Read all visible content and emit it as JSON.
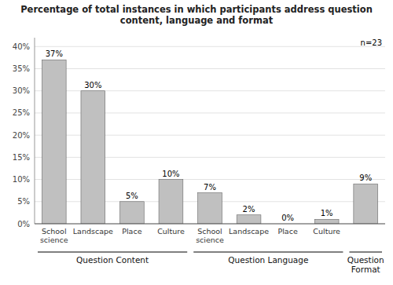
{
  "chart_data": {
    "type": "bar",
    "title": "Percentage of total instances in which participants address question\ncontent, language and format",
    "categories": [
      "School\nscience",
      "Landscape",
      "Place",
      "Culture",
      "School\nscience",
      "Landscape",
      "Place",
      "Culture",
      null
    ],
    "groups": [
      "Question Content",
      "Question Content",
      "Question Content",
      "Question Content",
      "Question Language",
      "Question Language",
      "Question Language",
      "Question Language",
      "Question\nFormat"
    ],
    "values": [
      37,
      30,
      5,
      10,
      7,
      2,
      0,
      1,
      9
    ],
    "value_labels": [
      "37%",
      "30%",
      "5%",
      "10%",
      "7%",
      "2%",
      "0%",
      "1%",
      "9%"
    ],
    "data_labels": true,
    "color": "#c0c0c0",
    "ylim": [
      0,
      42
    ],
    "yticks": [
      {
        "value": 0,
        "label": "0%"
      },
      {
        "value": 5,
        "label": "5%"
      },
      {
        "value": 10,
        "label": "10%"
      },
      {
        "value": 15,
        "label": "15%"
      },
      {
        "value": 20,
        "label": "20%"
      },
      {
        "value": 25,
        "label": "25%"
      },
      {
        "value": 30,
        "label": "30%"
      },
      {
        "value": 35,
        "label": "35%"
      },
      {
        "value": 40,
        "label": "40%"
      }
    ],
    "annotations": [
      "n=23"
    ],
    "grid": true
  }
}
